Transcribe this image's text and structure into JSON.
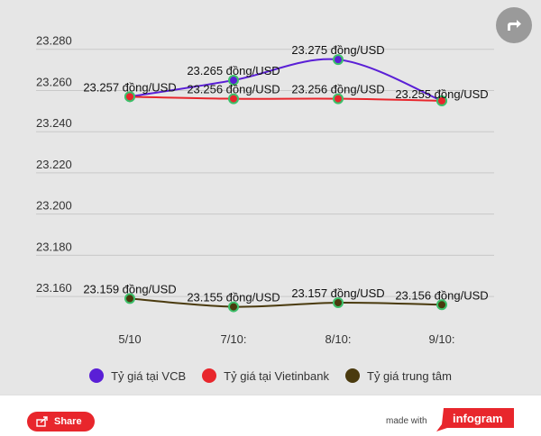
{
  "chart_data": {
    "type": "line",
    "title": "",
    "xlabel": "",
    "ylabel": "",
    "categories": [
      "5/10",
      "7/10:",
      "8/10:",
      "9/10:"
    ],
    "y_ticks": [
      "23.160",
      "23.180",
      "23.200",
      "23.220",
      "23.240",
      "23.260",
      "23.280"
    ],
    "ylim": [
      23150,
      23286
    ],
    "grid": true,
    "legend_position": "bottom",
    "series": [
      {
        "name": "Tỷ giá tại VCB",
        "color": "#5a1fd6",
        "values": [
          23257,
          23265,
          23275,
          23255
        ],
        "labels": [
          "23.257 đồng/USD",
          "23.265 đồng/USD",
          "23.275 đồng/USD",
          "23.255 đồng/USD"
        ]
      },
      {
        "name": "Tỷ giá tại Vietinbank",
        "color": "#e8262c",
        "values": [
          23257,
          23256,
          23256,
          23255
        ],
        "labels": [
          "",
          "23.256 đồng/USD",
          "23.256 đồng/USD",
          ""
        ]
      },
      {
        "name": "Tỷ giá trung tâm",
        "color": "#4a3a0e",
        "values": [
          23159,
          23155,
          23157,
          23156
        ],
        "labels": [
          "23.159 đồng/USD",
          "23.155 đồng/USD",
          "23.157 đồng/USD",
          "23.156 đồng/USD"
        ]
      }
    ]
  },
  "footer": {
    "share_label": "Share",
    "made_with": "made with",
    "brand": "infogram"
  }
}
